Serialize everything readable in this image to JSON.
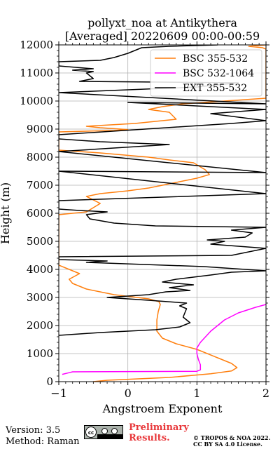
{
  "chart_data": {
    "type": "line",
    "title_line1": "pollyxt_noa at Antikythera",
    "title_line2": "[Averaged] 20220609 00:00-00:59",
    "xlabel": "Angstroem Exponent",
    "ylabel": "Height (m)",
    "xlim": [
      -1,
      2
    ],
    "ylim": [
      0,
      12000
    ],
    "xticks": [
      "−1",
      "0",
      "1",
      "2"
    ],
    "xtick_values": [
      -1,
      0,
      1,
      2
    ],
    "yticks": [
      "0",
      "1000",
      "2000",
      "3000",
      "4000",
      "5000",
      "6000",
      "7000",
      "8000",
      "9000",
      "10000",
      "11000",
      "12000"
    ],
    "ytick_values": [
      0,
      1000,
      2000,
      3000,
      4000,
      5000,
      6000,
      7000,
      8000,
      9000,
      10000,
      11000,
      12000
    ],
    "grid": true,
    "legend_position": "top-right",
    "series": [
      {
        "name": "BSC 355-532",
        "color": "#ff7f0e",
        "points": [
          [
            -0.5,
            0
          ],
          [
            -0.3,
            50
          ],
          [
            0.6,
            150
          ],
          [
            1.2,
            280
          ],
          [
            1.5,
            380
          ],
          [
            1.58,
            500
          ],
          [
            1.5,
            650
          ],
          [
            1.3,
            850
          ],
          [
            1.0,
            1150
          ],
          [
            0.7,
            1350
          ],
          [
            0.5,
            1550
          ],
          [
            0.42,
            1800
          ],
          [
            0.42,
            2200
          ],
          [
            0.44,
            2500
          ],
          [
            0.47,
            2750
          ],
          [
            0.45,
            2850
          ],
          [
            0.3,
            2950
          ],
          [
            -0.2,
            3100
          ],
          [
            -0.6,
            3300
          ],
          [
            -0.8,
            3500
          ],
          [
            -0.85,
            3650
          ],
          [
            -0.7,
            3850
          ],
          [
            -0.9,
            4050
          ],
          [
            -1.0,
            4150
          ],
          [
            -1.0,
            5950
          ],
          [
            -0.6,
            6050
          ],
          [
            -0.4,
            6350
          ],
          [
            -0.6,
            6600
          ],
          [
            -0.4,
            6700
          ],
          [
            0.0,
            6800
          ],
          [
            0.3,
            6900
          ],
          [
            0.6,
            7050
          ],
          [
            1.0,
            7250
          ],
          [
            1.18,
            7380
          ],
          [
            1.12,
            7550
          ],
          [
            0.95,
            7800
          ],
          [
            0.6,
            7900
          ],
          [
            0.3,
            8000
          ],
          [
            -0.4,
            8150
          ],
          [
            -1.0,
            8250
          ],
          [
            -1.0,
            8900
          ],
          [
            -0.2,
            8950
          ],
          [
            0.0,
            8980
          ],
          [
            -0.4,
            9050
          ],
          [
            -0.6,
            9100
          ],
          [
            0.1,
            9200
          ],
          [
            0.7,
            9350
          ],
          [
            0.6,
            9600
          ],
          [
            0.3,
            9700
          ],
          [
            0.5,
            9800
          ],
          [
            0.8,
            9900
          ],
          [
            1.4,
            10000
          ],
          [
            2.0,
            10100
          ],
          [
            2.0,
            11850
          ],
          [
            1.95,
            11900
          ],
          [
            1.75,
            11950
          ],
          [
            2.0,
            12000
          ]
        ]
      },
      {
        "name": "BSC 532-1064",
        "color": "#ff00ff",
        "points": [
          [
            -0.95,
            260
          ],
          [
            -0.85,
            320
          ],
          [
            -0.8,
            350
          ],
          [
            1.0,
            370
          ],
          [
            1.05,
            420
          ],
          [
            1.05,
            600
          ],
          [
            1.02,
            800
          ],
          [
            1.0,
            1000
          ],
          [
            1.0,
            1200
          ],
          [
            1.05,
            1400
          ],
          [
            1.2,
            1800
          ],
          [
            1.4,
            2200
          ],
          [
            1.6,
            2450
          ],
          [
            1.85,
            2650
          ],
          [
            2.0,
            2750
          ]
        ]
      },
      {
        "name": "EXT 355-532",
        "color": "#000000",
        "points": [
          [
            -1.0,
            1650
          ],
          [
            -0.4,
            1750
          ],
          [
            0.4,
            1850
          ],
          [
            0.75,
            1950
          ],
          [
            0.9,
            2100
          ],
          [
            0.8,
            2300
          ],
          [
            0.85,
            2600
          ],
          [
            0.75,
            2700
          ],
          [
            0.85,
            2800
          ],
          [
            0.3,
            2900
          ],
          [
            -0.3,
            3000
          ],
          [
            0.3,
            3100
          ],
          [
            0.55,
            3200
          ],
          [
            0.9,
            3250
          ],
          [
            0.6,
            3350
          ],
          [
            0.95,
            3450
          ],
          [
            0.5,
            3550
          ],
          [
            0.7,
            3650
          ],
          [
            1.2,
            3800
          ],
          [
            1.5,
            3900
          ],
          [
            2.0,
            3950
          ],
          [
            1.1,
            4100
          ],
          [
            -0.6,
            4250
          ],
          [
            -0.3,
            4300
          ],
          [
            -1.0,
            4350
          ],
          [
            -1.0,
            4450
          ],
          [
            1.5,
            4500
          ],
          [
            2.0,
            4750
          ],
          [
            1.2,
            4900
          ],
          [
            1.4,
            5000
          ],
          [
            1.15,
            5050
          ],
          [
            1.7,
            5150
          ],
          [
            1.8,
            5300
          ],
          [
            1.5,
            5400
          ],
          [
            2.0,
            5500
          ],
          [
            0.4,
            5550
          ],
          [
            -0.2,
            5650
          ],
          [
            -0.55,
            5800
          ],
          [
            -0.6,
            5950
          ],
          [
            -0.3,
            6050
          ],
          [
            -0.7,
            6100
          ],
          [
            -1.0,
            6150
          ],
          [
            -1.0,
            6450
          ],
          [
            2.0,
            6700
          ],
          [
            -1.0,
            7500
          ],
          [
            2.0,
            7450
          ],
          [
            -1.0,
            8200
          ],
          [
            0.6,
            8450
          ],
          [
            -0.4,
            8550
          ],
          [
            -1.0,
            8650
          ],
          [
            -1.0,
            8800
          ],
          [
            1.5,
            9200
          ],
          [
            2.0,
            9300
          ],
          [
            1.2,
            9550
          ],
          [
            2.0,
            9700
          ],
          [
            0.0,
            9950
          ],
          [
            2.0,
            9900
          ],
          [
            -1.0,
            10300
          ],
          [
            1.0,
            10500
          ],
          [
            1.6,
            10650
          ],
          [
            -0.7,
            10700
          ],
          [
            -0.5,
            10800
          ],
          [
            -0.6,
            11000
          ],
          [
            -0.5,
            11050
          ],
          [
            -0.8,
            11100
          ],
          [
            -0.5,
            11150
          ],
          [
            -1.0,
            11250
          ],
          [
            -1.0,
            11400
          ],
          [
            -0.4,
            11450
          ],
          [
            -0.2,
            11550
          ],
          [
            0.0,
            11700
          ],
          [
            0.2,
            11900
          ],
          [
            0.6,
            11950
          ],
          [
            1.3,
            12000
          ]
        ]
      }
    ]
  },
  "footer": {
    "version": "Version: 3.5",
    "method": "Method: Raman",
    "preliminary_line1": "Preliminary",
    "preliminary_line2": "Results.",
    "copyright_line1": "© TROPOS & NOA 2022.",
    "copyright_line2": "CC BY SA 4.0 License."
  },
  "license_badge_icon": "creative-commons-by-sa-icon"
}
